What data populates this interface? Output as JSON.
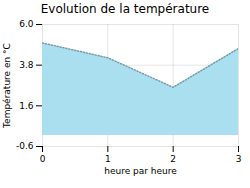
{
  "chart_data": {
    "type": "area",
    "title": "Evolution de la température",
    "xlabel": "heure par heure",
    "ylabel": "Température en °C",
    "x": [
      0,
      1,
      2,
      3
    ],
    "values": [
      5.0,
      4.2,
      2.6,
      4.7
    ],
    "xlim": [
      0,
      3
    ],
    "ylim": [
      -0.6,
      6.0
    ],
    "xticks": [
      0,
      1,
      2,
      3
    ],
    "yticks": [
      -0.6,
      1.6,
      3.8,
      {
        "value": 6.0,
        "label": "6.0"
      }
    ],
    "color": "#aadff0",
    "line_style": "dotted",
    "grid": true
  }
}
